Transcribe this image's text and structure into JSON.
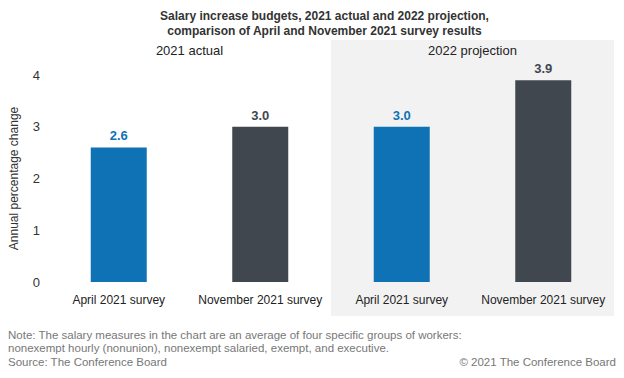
{
  "chart_data": {
    "type": "bar",
    "title": "Salary increase budgets, 2021 actual and 2022 projection,\ncomparison of April and November 2021 survey results",
    "group_labels": [
      "2021 actual",
      "2022 projection"
    ],
    "categories": [
      "April 2021 survey",
      "November 2021 survey",
      "April 2021 survey",
      "November 2021 survey"
    ],
    "values": [
      2.6,
      3.0,
      3.0,
      3.9
    ],
    "value_labels": [
      "2.6",
      "3.0",
      "3.0",
      "3.9"
    ],
    "colors": [
      "#0f72b5",
      "#40474f",
      "#0f72b5",
      "#40474f"
    ],
    "y_label": "Annual percentage change",
    "ylim": [
      0,
      4
    ],
    "yticks": [
      0,
      1,
      2,
      3,
      4
    ],
    "grid": false,
    "data_labels": true,
    "note": "Note: The salary measures in the chart are an average of four specific groups of workers:\nnonexempt hourly (nonunion), nonexempt salaried, exempt, and executive.",
    "source": "Source: The Conference Board",
    "copyright": "© 2021 The Conference Board"
  }
}
